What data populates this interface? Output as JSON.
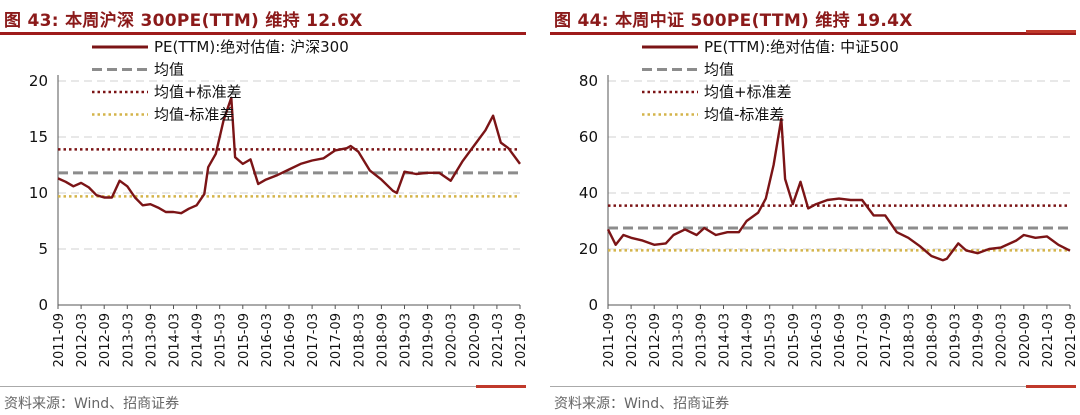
{
  "chart_data": [
    {
      "type": "line",
      "title": "图 43: 本周沪深 300PE(TTM) 维持 12.6X",
      "source": "资料来源：Wind、招商证券",
      "ylim": [
        0,
        20
      ],
      "yticks": [
        0,
        5,
        10,
        15,
        20
      ],
      "x_tick_labels": [
        "2011-09",
        "2012-03",
        "2012-09",
        "2013-03",
        "2013-09",
        "2014-03",
        "2014-09",
        "2015-03",
        "2015-09",
        "2016-03",
        "2016-09",
        "2017-03",
        "2017-09",
        "2018-03",
        "2018-09",
        "2019-03",
        "2019-09",
        "2020-03",
        "2020-09",
        "2021-03",
        "2021-09"
      ],
      "legend": [
        "PE(TTM):绝对估值: 沪深300",
        "均值",
        "均值+标准差",
        "均值-标准差"
      ],
      "legend_placement": "top-left",
      "grid": "horizontal dashed",
      "colors": {
        "series": "#7b1416",
        "mean": "#8c8c8c",
        "plus_sd": "#7b1416",
        "minus_sd": "#d4b44a"
      },
      "series": [
        {
          "name": "PE(TTM):绝对估值: 沪深300",
          "x": [
            "2011-09",
            "2011-11",
            "2012-01",
            "2012-03",
            "2012-05",
            "2012-07",
            "2012-09",
            "2012-11",
            "2013-01",
            "2013-03",
            "2013-05",
            "2013-07",
            "2013-09",
            "2013-11",
            "2014-01",
            "2014-03",
            "2014-05",
            "2014-07",
            "2014-09",
            "2014-11",
            "2014-12",
            "2015-02",
            "2015-04",
            "2015-06",
            "2015-07",
            "2015-09",
            "2015-11",
            "2016-01",
            "2016-03",
            "2016-06",
            "2016-09",
            "2016-12",
            "2017-03",
            "2017-06",
            "2017-09",
            "2017-12",
            "2018-01",
            "2018-03",
            "2018-06",
            "2018-09",
            "2018-12",
            "2019-01",
            "2019-03",
            "2019-06",
            "2019-09",
            "2019-12",
            "2020-03",
            "2020-06",
            "2020-09",
            "2020-12",
            "2021-02",
            "2021-04",
            "2021-06",
            "2021-09"
          ],
          "values": [
            11.3,
            11.0,
            10.6,
            10.9,
            10.5,
            9.8,
            9.6,
            9.6,
            11.1,
            10.6,
            9.6,
            8.9,
            9.0,
            8.7,
            8.3,
            8.3,
            8.2,
            8.6,
            8.9,
            9.9,
            12.3,
            13.5,
            16.5,
            18.5,
            13.2,
            12.6,
            13.0,
            10.8,
            11.2,
            11.6,
            12.1,
            12.6,
            12.9,
            13.1,
            13.8,
            14.0,
            14.2,
            13.7,
            12.0,
            11.2,
            10.2,
            10.0,
            11.9,
            11.7,
            11.8,
            11.8,
            11.1,
            12.8,
            14.2,
            15.6,
            16.9,
            14.5,
            14.0,
            12.6
          ]
        },
        {
          "name": "均值",
          "constant": 11.8
        },
        {
          "name": "均值+标准差",
          "constant": 13.9
        },
        {
          "name": "均值-标准差",
          "constant": 9.7
        }
      ]
    },
    {
      "type": "line",
      "title": "图 44: 本周中证 500PE(TTM) 维持 19.4X",
      "source": "资料来源：Wind、招商证券",
      "ylim": [
        0,
        80
      ],
      "yticks": [
        0,
        20,
        40,
        60,
        80
      ],
      "x_tick_labels": [
        "2011-09",
        "2012-03",
        "2012-09",
        "2013-03",
        "2013-09",
        "2014-03",
        "2014-09",
        "2015-03",
        "2015-09",
        "2016-03",
        "2016-09",
        "2017-03",
        "2017-09",
        "2018-03",
        "2018-09",
        "2019-03",
        "2019-09",
        "2020-03",
        "2020-09",
        "2021-03",
        "2021-09"
      ],
      "legend": [
        "PE(TTM):绝对估值: 中证500",
        "均值",
        "均值+标准差",
        "均值-标准差"
      ],
      "legend_placement": "top-left",
      "grid": "horizontal dashed",
      "colors": {
        "series": "#7b1416",
        "mean": "#8c8c8c",
        "plus_sd": "#7b1416",
        "minus_sd": "#d4b44a"
      },
      "series": [
        {
          "name": "PE(TTM):绝对估值: 中证500",
          "x": [
            "2011-09",
            "2011-11",
            "2012-01",
            "2012-03",
            "2012-06",
            "2012-09",
            "2012-12",
            "2013-02",
            "2013-05",
            "2013-08",
            "2013-10",
            "2014-01",
            "2014-04",
            "2014-07",
            "2014-09",
            "2014-12",
            "2015-02",
            "2015-04",
            "2015-06",
            "2015-07",
            "2015-09",
            "2015-11",
            "2016-01",
            "2016-03",
            "2016-06",
            "2016-09",
            "2016-12",
            "2017-03",
            "2017-06",
            "2017-09",
            "2017-12",
            "2018-03",
            "2018-06",
            "2018-09",
            "2018-12",
            "2019-01",
            "2019-04",
            "2019-06",
            "2019-09",
            "2019-12",
            "2020-03",
            "2020-07",
            "2020-09",
            "2020-12",
            "2021-03",
            "2021-06",
            "2021-09"
          ],
          "values": [
            27.0,
            21.5,
            25.0,
            24.0,
            23.0,
            21.5,
            22.0,
            25.0,
            27.0,
            25.0,
            27.5,
            25.0,
            26.0,
            26.0,
            30.0,
            33.0,
            38.0,
            50.0,
            66.5,
            45.0,
            36.0,
            44.0,
            34.5,
            36.0,
            37.5,
            38.0,
            37.5,
            37.5,
            32.0,
            32.0,
            26.0,
            24.0,
            21.0,
            17.5,
            16.0,
            16.5,
            22.0,
            19.5,
            18.5,
            20.0,
            20.5,
            23.0,
            25.0,
            24.0,
            24.5,
            21.5,
            19.4
          ]
        },
        {
          "name": "均值",
          "constant": 27.5
        },
        {
          "name": "均值+标准差",
          "constant": 35.5
        },
        {
          "name": "均值-标准差",
          "constant": 19.5
        }
      ]
    }
  ]
}
